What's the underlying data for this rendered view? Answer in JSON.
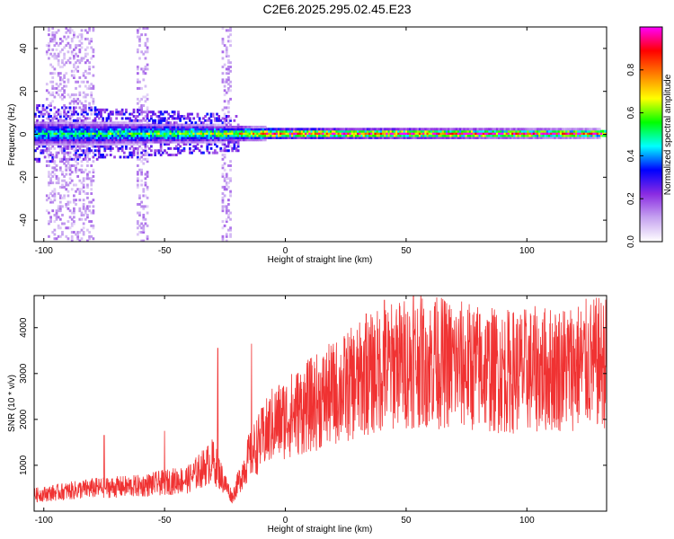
{
  "title": "C2E6.2025.295.02.45.E23",
  "chart_data": [
    {
      "type": "heatmap",
      "xlabel": "Height of straight line (km)",
      "ylabel": "Frequency (Hz)",
      "xlim": [
        -104,
        133
      ],
      "ylim": [
        -50,
        50
      ],
      "xticks": [
        -100,
        -50,
        0,
        50,
        100
      ],
      "yticks": [
        -40,
        -20,
        0,
        20,
        40
      ],
      "colorbar": {
        "label": "Normalized spectral amplitude",
        "range": [
          0,
          1
        ],
        "ticks": [
          "0.0",
          "0.2",
          "0.4",
          "0.6",
          "0.8"
        ],
        "colors": [
          "#ffffff",
          "#c6a3f0",
          "#8a2be2",
          "#0000ff",
          "#00ffff",
          "#00ff00",
          "#ffff00",
          "#ff8000",
          "#ff0000",
          "#ff00ff"
        ]
      },
      "band": {
        "center_hz": 0.5,
        "half_width_hz": [
          {
            "x": -100,
            "w": 6
          },
          {
            "x": -60,
            "w": 5
          },
          {
            "x": -25,
            "w": 4
          },
          {
            "x": 0,
            "w": 2.5
          },
          {
            "x": 130,
            "w": 2
          }
        ],
        "peak_amplitude": [
          {
            "x": -100,
            "v": 0.5
          },
          {
            "x": -25,
            "v": 0.65
          },
          {
            "x": 0,
            "v": 0.9
          },
          {
            "x": 130,
            "v": 0.95
          }
        ]
      }
    },
    {
      "type": "line",
      "xlabel": "Height of straight line (km)",
      "ylabel": "SNR (10 * v/v)",
      "xlim": [
        -104,
        133
      ],
      "ylim": [
        0,
        4700
      ],
      "xticks": [
        -100,
        -50,
        0,
        50,
        100
      ],
      "yticks": [
        1000,
        2000,
        3000,
        4000
      ],
      "color": "#f03232",
      "trend": [
        {
          "x": -104,
          "v": 350
        },
        {
          "x": -80,
          "v": 500
        },
        {
          "x": -60,
          "v": 550
        },
        {
          "x": -40,
          "v": 700
        },
        {
          "x": -30,
          "v": 1100
        },
        {
          "x": -22,
          "v": 300
        },
        {
          "x": -15,
          "v": 1200
        },
        {
          "x": -5,
          "v": 1900
        },
        {
          "x": 10,
          "v": 2300
        },
        {
          "x": 25,
          "v": 2700
        },
        {
          "x": 40,
          "v": 3100
        },
        {
          "x": 55,
          "v": 3300
        },
        {
          "x": 70,
          "v": 3200
        },
        {
          "x": 90,
          "v": 3050
        },
        {
          "x": 110,
          "v": 3100
        },
        {
          "x": 133,
          "v": 3250
        }
      ],
      "spikes": [
        {
          "x": -75,
          "v": 1650
        },
        {
          "x": -50,
          "v": 1750
        },
        {
          "x": -28,
          "v": 3550
        },
        {
          "x": -14,
          "v": 3650
        },
        {
          "x": 33,
          "v": 3700
        },
        {
          "x": 33.5,
          "v": 4300
        },
        {
          "x": 41,
          "v": 4600
        },
        {
          "x": 46,
          "v": 4400
        },
        {
          "x": 53,
          "v": 4700
        },
        {
          "x": 58,
          "v": 4000
        },
        {
          "x": 62,
          "v": 4550
        }
      ]
    }
  ]
}
